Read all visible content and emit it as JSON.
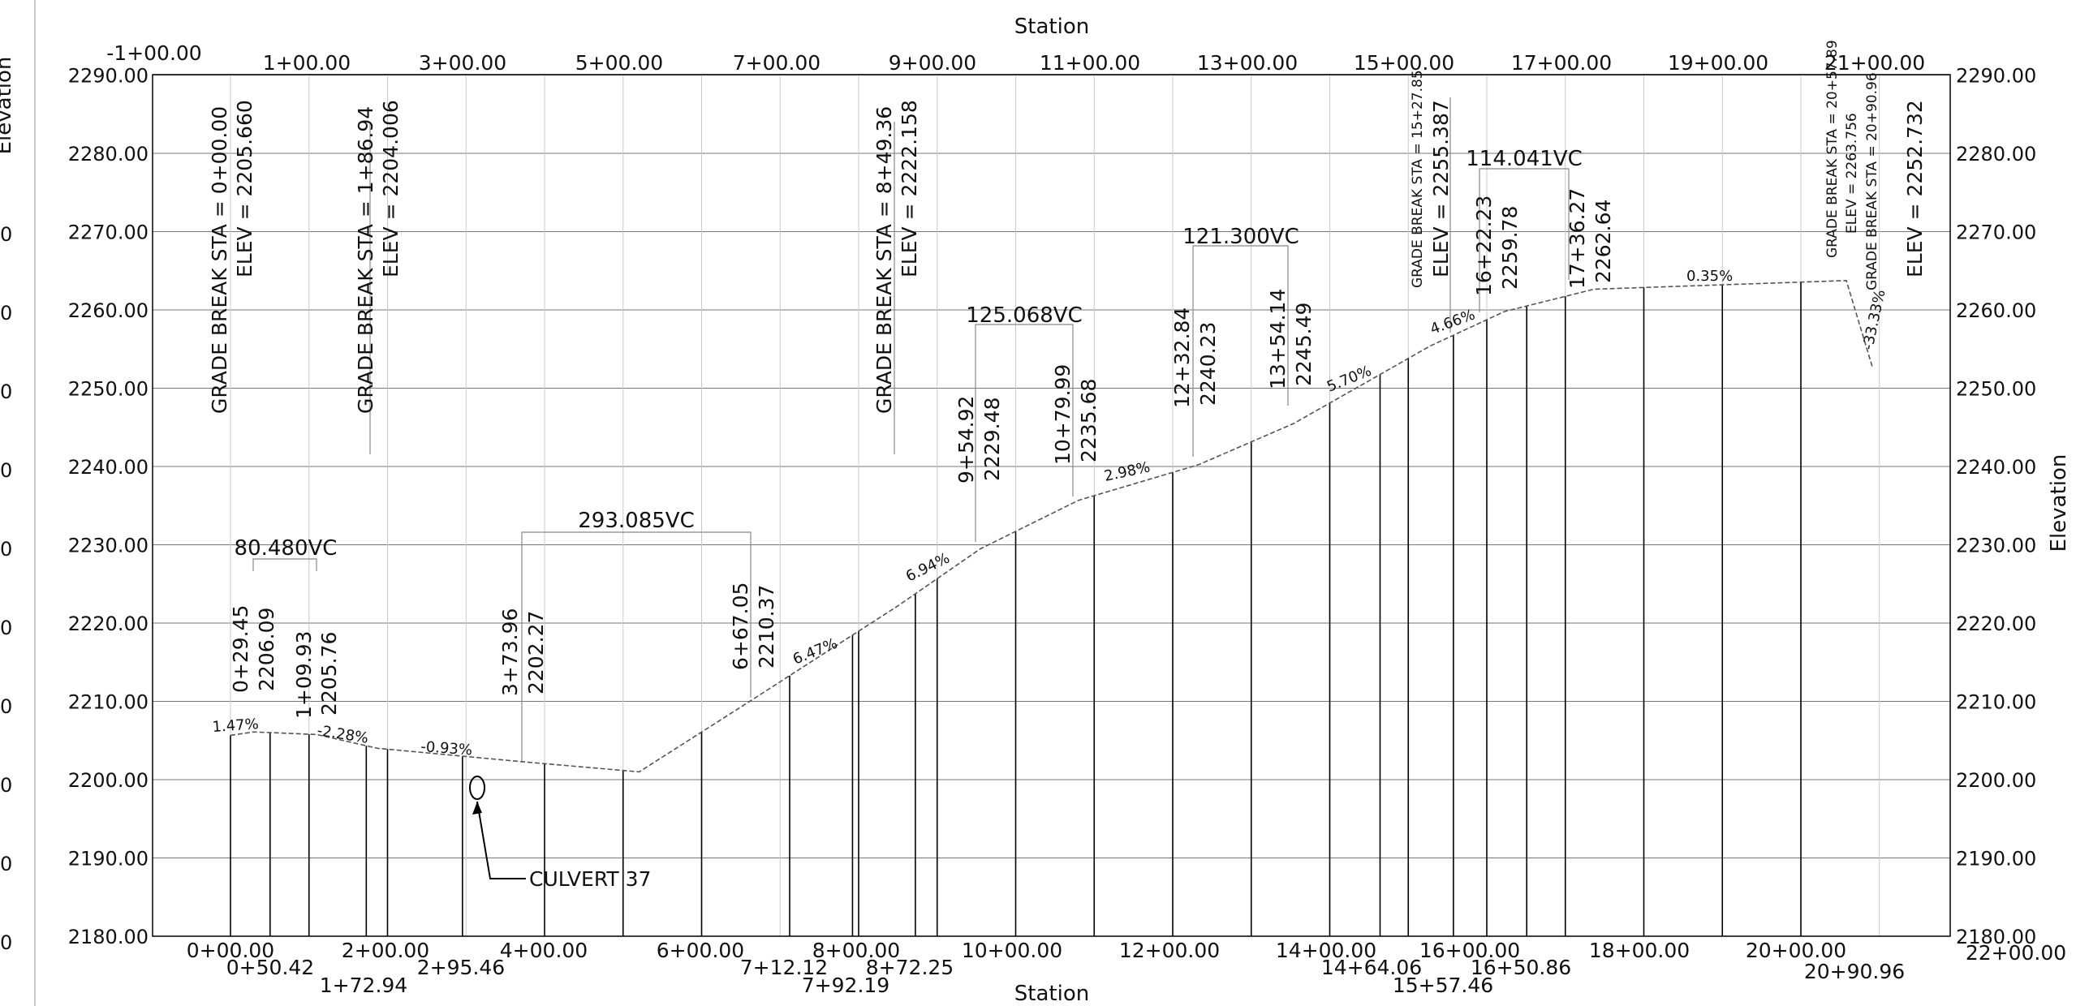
{
  "titles": {
    "top": "Station",
    "bottom": "Station",
    "left": "Elevation",
    "right": "Elevation"
  },
  "elevation_labels": [
    "2290.00",
    "2280.00",
    "2270.00",
    "2260.00",
    "2250.00",
    "2240.00",
    "2230.00",
    "2220.00",
    "2210.00",
    "2200.00",
    "2190.00",
    "2180.00"
  ],
  "left_edge_fragments": [
    "0",
    "0",
    "0",
    "0",
    "0",
    "0",
    "0",
    "0",
    "0",
    "0"
  ],
  "top_stations": [
    "-1+00.00",
    "1+00.00",
    "3+00.00",
    "5+00.00",
    "7+00.00",
    "9+00.00",
    "11+00.00",
    "13+00.00",
    "15+00.00",
    "17+00.00",
    "19+00.00",
    "21+00.00"
  ],
  "bottom_stations": [
    "0+00.00",
    "2+00.00",
    "4+00.00",
    "6+00.00",
    "8+00.00",
    "10+00.00",
    "12+00.00",
    "14+00.00",
    "16+00.00",
    "18+00.00",
    "20+00.00",
    "22+00.00"
  ],
  "bottom_extra_stations": [
    "0+50.42",
    "1+72.94",
    "2+95.46",
    "7+12.12",
    "7+92.19",
    "8+72.25",
    "14+64.06",
    "15+57.46",
    "16+50.86",
    "20+90.96"
  ],
  "grade_breaks": [
    {
      "station": "GRADE BREAK STA = 0+00.00",
      "elev": "ELEV =  2205.660"
    },
    {
      "station": "GRADE BREAK STA = 1+86.94",
      "elev": "ELEV =  2204.006"
    },
    {
      "station": "GRADE BREAK STA = 8+49.36",
      "elev": "ELEV =  2222.158"
    },
    {
      "station": "GRADE BREAK STA = 15+27.85",
      "elev": "ELEV =  2255.387"
    },
    {
      "station": "GRADE BREAK STA = 20+57.89",
      "elev": "ELEV =  2263.756"
    },
    {
      "station": "GRADE BREAK STA = 20+90.96",
      "elev": "ELEV =  2252.732"
    }
  ],
  "point_labels": [
    {
      "station": "0+29.45",
      "elev": "2206.09"
    },
    {
      "station": "1+09.93",
      "elev": "2205.76"
    },
    {
      "station": "3+73.96",
      "elev": "2202.27"
    },
    {
      "station": "6+67.05",
      "elev": "2210.37"
    },
    {
      "station": "9+54.92",
      "elev": "2229.48"
    },
    {
      "station": "10+79.99",
      "elev": "2235.68"
    },
    {
      "station": "12+32.84",
      "elev": "2240.23"
    },
    {
      "station": "13+54.14",
      "elev": "2245.49"
    },
    {
      "station": "16+22.23",
      "elev": "2259.78"
    },
    {
      "station": "17+36.27",
      "elev": "2262.64"
    }
  ],
  "vertical_curves": [
    "80.480VC",
    "293.085VC",
    "125.068VC",
    "121.300VC",
    "114.041VC"
  ],
  "grades": [
    "1.47%",
    "-2.28%",
    "-0.93%",
    "6.47%",
    "6.94%",
    "2.98%",
    "5.70%",
    "4.66%",
    "0.35%",
    "-33.33%"
  ],
  "culvert": "CULVERT 37",
  "profile_vertices": [
    {
      "sta": 0,
      "elev": 2205.66
    },
    {
      "sta": 29.45,
      "elev": 2206.09
    },
    {
      "sta": 109.93,
      "elev": 2205.76
    },
    {
      "sta": 186.94,
      "elev": 2204.006
    },
    {
      "sta": 373.96,
      "elev": 2202.27
    },
    {
      "sta": 520.5,
      "elev": 2201.0
    },
    {
      "sta": 667.05,
      "elev": 2210.37
    },
    {
      "sta": 849.36,
      "elev": 2222.158
    },
    {
      "sta": 954.92,
      "elev": 2229.48
    },
    {
      "sta": 1079.99,
      "elev": 2235.68
    },
    {
      "sta": 1232.84,
      "elev": 2240.23
    },
    {
      "sta": 1354.14,
      "elev": 2245.49
    },
    {
      "sta": 1527.85,
      "elev": 2255.387
    },
    {
      "sta": 1622.23,
      "elev": 2259.78
    },
    {
      "sta": 1736.27,
      "elev": 2262.64
    },
    {
      "sta": 2057.89,
      "elev": 2263.756
    },
    {
      "sta": 2090.96,
      "elev": 2252.732
    }
  ],
  "ordinate_stations": [
    0,
    50.42,
    100,
    172.94,
    200,
    295.46,
    400,
    500,
    600,
    712.12,
    792.19,
    800,
    872.25,
    900,
    1000,
    1100,
    1200,
    1300,
    1400,
    1464.06,
    1500,
    1557.46,
    1600,
    1650.86,
    1700,
    1800,
    1900,
    2000
  ]
}
